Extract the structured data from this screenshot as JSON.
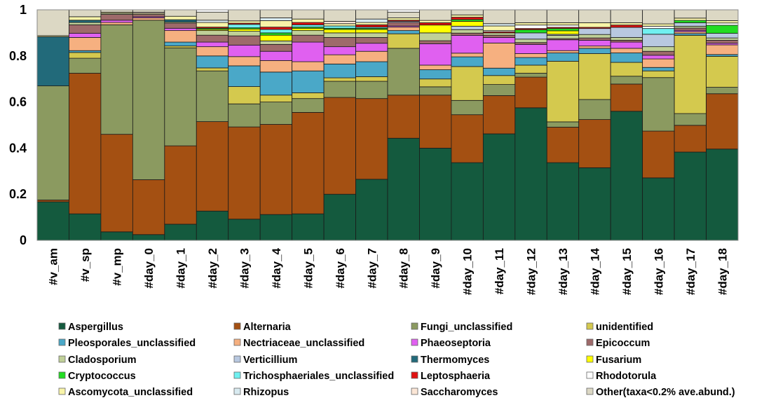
{
  "chart_data": {
    "type": "bar",
    "stacked": true,
    "normalized": true,
    "title": "",
    "xlabel": "",
    "ylabel": "",
    "ylim": [
      0,
      1
    ],
    "yticks": [
      "0",
      "0.2",
      "0.4",
      "0.6",
      "0.8",
      "1"
    ],
    "ytick_values": [
      0,
      0.2,
      0.4,
      0.6,
      0.8,
      1
    ],
    "legend_position": "bottom",
    "categories": [
      "#v_am",
      "#v_sp",
      "#v_mp",
      "#day_0",
      "#day_1",
      "#day_2",
      "#day_3",
      "#day_4",
      "#day_5",
      "#day_6",
      "#day_7",
      "#day_8",
      "#day_9",
      "#day_10",
      "#day_11",
      "#day_12",
      "#day_13",
      "#day_14",
      "#day_15",
      "#day_16",
      "#day_17",
      "#day_18"
    ],
    "series": [
      {
        "name": "Aspergillus",
        "color": "#145a3e",
        "values": [
          0.167,
          0.115,
          0.037,
          0.025,
          0.07,
          0.127,
          0.092,
          0.112,
          0.115,
          0.2,
          0.265,
          0.443,
          0.4,
          0.337,
          0.462,
          0.575,
          0.337,
          0.315,
          0.56,
          0.271,
          0.383,
          0.396
        ]
      },
      {
        "name": "Alternaria",
        "color": "#a45012",
        "values": [
          0.008,
          0.61,
          0.423,
          0.238,
          0.34,
          0.388,
          0.4,
          0.391,
          0.44,
          0.42,
          0.35,
          0.187,
          0.23,
          0.208,
          0.166,
          0.133,
          0.154,
          0.209,
          0.118,
          0.203,
          0.116,
          0.24
        ]
      },
      {
        "name": "Fungi_unclassified",
        "color": "#8b9a60",
        "values": [
          0.495,
          0.065,
          0.475,
          0.692,
          0.425,
          0.22,
          0.1,
          0.097,
          0.06,
          0.07,
          0.075,
          0.203,
          0.036,
          0.062,
          0.048,
          0.017,
          0.023,
          0.087,
          0.034,
          0.232,
          0.051,
          0.028
        ]
      },
      {
        "name": "unidentified",
        "color": "#d4c94e",
        "values": [
          0,
          0.025,
          0,
          0,
          0.008,
          0.013,
          0.075,
          0.03,
          0.025,
          0.015,
          0.02,
          0.063,
          0.034,
          0.147,
          0.039,
          0.035,
          0.263,
          0.199,
          0.06,
          0.029,
          0.339,
          0.134
        ]
      },
      {
        "name": "Pleosporales_unclassified",
        "color": "#4aa8c8",
        "values": [
          0,
          0.008,
          0,
          0,
          0.017,
          0.052,
          0.09,
          0.1,
          0.095,
          0.06,
          0.065,
          0.014,
          0.04,
          0.042,
          0.032,
          0.033,
          0.036,
          0.023,
          0.041,
          0.015,
          0.008,
          0.008
        ]
      },
      {
        "name": "Nectriaceae_unclassified",
        "color": "#f6b080",
        "values": [
          0,
          0.057,
          0.01,
          0.01,
          0.05,
          0.04,
          0.04,
          0.05,
          0.04,
          0.04,
          0.045,
          0.015,
          0.02,
          0.016,
          0.109,
          0.017,
          0.01,
          0.01,
          0.02,
          0.037,
          0.008,
          0.042
        ]
      },
      {
        "name": "Phaeoseptoria",
        "color": "#e060f0",
        "values": [
          0,
          0.018,
          0.01,
          0.005,
          0.01,
          0.02,
          0.05,
          0.04,
          0.085,
          0.035,
          0.035,
          0.005,
          0.093,
          0.077,
          0.024,
          0.04,
          0.047,
          0.025,
          0.027,
          0.016,
          0.006,
          0.007
        ]
      },
      {
        "name": "Epicoccum",
        "color": "#9e6a6a",
        "values": [
          0,
          0.037,
          0.025,
          0.01,
          0.022,
          0.03,
          0.04,
          0.03,
          0.03,
          0.04,
          0.025,
          0.015,
          0.013,
          0.01,
          0.01,
          0.008,
          0.005,
          0.01,
          0.008,
          0.017,
          0.01,
          0.013
        ]
      },
      {
        "name": "Cladosporium",
        "color": "#c0d098",
        "values": [
          0,
          0.01,
          0.005,
          0,
          0.005,
          0.02,
          0.02,
          0.015,
          0.02,
          0.02,
          0.02,
          0,
          0.034,
          0.015,
          0.01,
          0.015,
          0.014,
          0.015,
          0.012,
          0.02,
          0.008,
          0.01
        ]
      },
      {
        "name": "Verticillium",
        "color": "#b8c8e0",
        "values": [
          0,
          0,
          0,
          0,
          0,
          0,
          0,
          0,
          0,
          0,
          0,
          0.005,
          0,
          0.015,
          0,
          0.027,
          0.005,
          0.026,
          0.044,
          0.054,
          0.015,
          0.02
        ]
      },
      {
        "name": "Thermomyces",
        "color": "#226a7a",
        "values": [
          0.213,
          0.01,
          0,
          0,
          0.01,
          0,
          0,
          0,
          0,
          0,
          0,
          0,
          0,
          0,
          0,
          0,
          0,
          0,
          0,
          0,
          0,
          0
        ]
      },
      {
        "name": "Fusarium",
        "color": "#ffff00",
        "values": [
          0,
          0,
          0,
          0,
          0,
          0.005,
          0.01,
          0.025,
          0.01,
          0.015,
          0.015,
          0,
          0.034,
          0.021,
          0,
          0,
          0.015,
          0,
          0,
          0,
          0,
          0
        ]
      },
      {
        "name": "Cryptococcus",
        "color": "#22dd22",
        "values": [
          0,
          0,
          0,
          0,
          0,
          0.005,
          0.005,
          0.01,
          0.005,
          0.005,
          0.005,
          0,
          0,
          0.008,
          0,
          0.014,
          0.01,
          0,
          0,
          0,
          0.01,
          0.035
        ]
      },
      {
        "name": "Trichosphaeriales_unclassified",
        "color": "#70f0f0",
        "values": [
          0,
          0,
          0,
          0,
          0,
          0,
          0.015,
          0.015,
          0.01,
          0.01,
          0.005,
          0,
          0,
          0,
          0,
          0,
          0,
          0,
          0,
          0.025,
          0,
          0
        ]
      },
      {
        "name": "Leptosphaeria",
        "color": "#e01010",
        "values": [
          0,
          0,
          0,
          0,
          0,
          0.005,
          0.005,
          0.01,
          0.01,
          0,
          0.01,
          0.005,
          0.01,
          0.01,
          0.005,
          0.005,
          0.005,
          0.005,
          0.01,
          0,
          0,
          0
        ]
      },
      {
        "name": "Rhodotorula",
        "color": "#ffffff",
        "values": [
          0,
          0,
          0,
          0,
          0,
          0,
          0,
          0,
          0,
          0,
          0,
          0,
          0,
          0,
          0.005,
          0.015,
          0.01,
          0,
          0,
          0.01,
          0,
          0.01
        ]
      },
      {
        "name": "Ascomycota_unclassified",
        "color": "#f8f4a8",
        "values": [
          0.005,
          0.015,
          0.005,
          0.005,
          0.015,
          0.02,
          0.01,
          0.028,
          0.015,
          0.01,
          0.01,
          0.01,
          0.01,
          0.01,
          0.02,
          0.01,
          0.01,
          0.02,
          0.01,
          0.01,
          0.01,
          0.01
        ]
      },
      {
        "name": "Rhizopus",
        "color": "#d8eaf0",
        "values": [
          0,
          0,
          0,
          0,
          0,
          0.01,
          0,
          0.012,
          0,
          0,
          0.015,
          0,
          0,
          0,
          0.01,
          0,
          0,
          0,
          0,
          0,
          0,
          0
        ]
      },
      {
        "name": "Saccharomyces",
        "color": "#fbe6d6",
        "values": [
          0,
          0,
          0,
          0.005,
          0,
          0,
          0,
          0,
          0,
          0.01,
          0,
          0,
          0,
          0,
          0,
          0,
          0,
          0,
          0,
          0,
          0,
          0
        ]
      },
      {
        "name": "Other(taxa<0.2% ave.abund.)",
        "color": "#dcd8c4",
        "values": [
          0.112,
          0.03,
          0.01,
          0.01,
          0.028,
          0.035,
          0.048,
          0.035,
          0.04,
          0.05,
          0.04,
          0.025,
          0.046,
          0.022,
          0.06,
          0.056,
          0.056,
          0.056,
          0.056,
          0.061,
          0.036,
          0.047
        ]
      }
    ]
  }
}
